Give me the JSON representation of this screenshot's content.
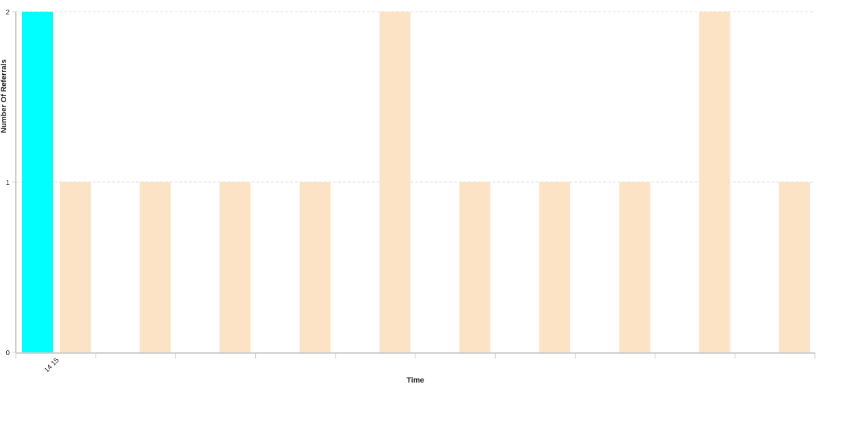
{
  "chart_data": {
    "type": "bar",
    "xlabel": "Time",
    "ylabel": "Number Of Referrals",
    "ylim": [
      0,
      2
    ],
    "yticks": [
      0,
      1,
      2
    ],
    "grid": "horizontal dashed",
    "categories": [
      "14 15",
      "",
      "",
      "",
      "",
      "",
      "",
      "",
      "",
      ""
    ],
    "series": [
      {
        "color": "#00ffff",
        "values": [
          2,
          0,
          0,
          0,
          0,
          0,
          0,
          0,
          0,
          0
        ]
      },
      {
        "color": "#fde3c5",
        "values": [
          1,
          1,
          1,
          1,
          2,
          1,
          1,
          1,
          2,
          1
        ]
      }
    ]
  }
}
